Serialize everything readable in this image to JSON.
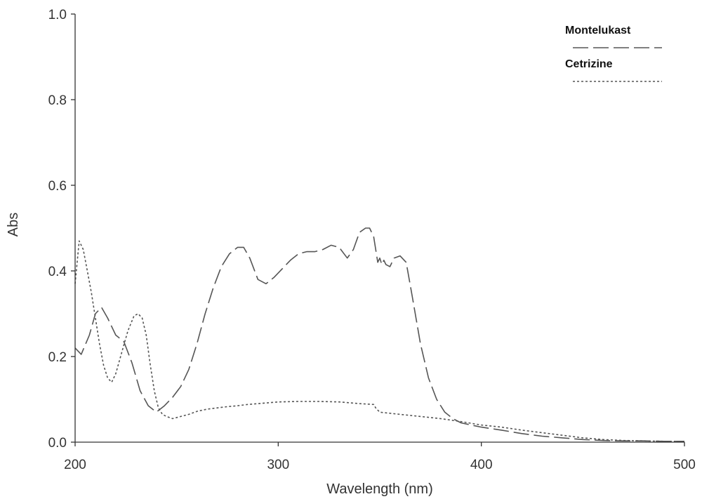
{
  "chart_data": {
    "type": "line",
    "title": "",
    "xlabel": "Wavelength (nm)",
    "ylabel": "Abs",
    "xlim": [
      200,
      500
    ],
    "ylim": [
      0.0,
      1.0
    ],
    "xticks": [
      200,
      300,
      400,
      500
    ],
    "xtick_labels": [
      "200",
      "300",
      "400",
      "500"
    ],
    "yticks": [
      0.0,
      0.2,
      0.4,
      0.6,
      0.8,
      1.0
    ],
    "ytick_labels": [
      "0.0",
      "0.2",
      "0.4",
      "0.6",
      "0.8",
      "1.0"
    ],
    "grid": false,
    "legend_position": "top-right",
    "series": [
      {
        "name": "Montelukast",
        "dash": "long-dash",
        "color": "#555555",
        "x": [
          200,
          203,
          207,
          210,
          213,
          216,
          220,
          224,
          228,
          232,
          236,
          240,
          244,
          248,
          252,
          256,
          260,
          264,
          268,
          272,
          276,
          280,
          283,
          286,
          290,
          294,
          298,
          302,
          306,
          310,
          314,
          318,
          322,
          326,
          330,
          334,
          337,
          340,
          343,
          345,
          347,
          349,
          350,
          351,
          352,
          353,
          355,
          357,
          360,
          363,
          366,
          370,
          374,
          378,
          382,
          386,
          390,
          395,
          400,
          410,
          420,
          430,
          440,
          450,
          460,
          470,
          480,
          490,
          500
        ],
        "y": [
          0.22,
          0.205,
          0.25,
          0.3,
          0.315,
          0.29,
          0.25,
          0.235,
          0.185,
          0.12,
          0.085,
          0.07,
          0.085,
          0.105,
          0.13,
          0.17,
          0.23,
          0.3,
          0.36,
          0.41,
          0.44,
          0.455,
          0.455,
          0.43,
          0.38,
          0.37,
          0.385,
          0.405,
          0.425,
          0.44,
          0.445,
          0.445,
          0.45,
          0.46,
          0.455,
          0.43,
          0.45,
          0.49,
          0.5,
          0.5,
          0.48,
          0.42,
          0.43,
          0.415,
          0.425,
          0.415,
          0.41,
          0.43,
          0.435,
          0.42,
          0.34,
          0.23,
          0.15,
          0.1,
          0.07,
          0.055,
          0.045,
          0.04,
          0.035,
          0.028,
          0.02,
          0.014,
          0.01,
          0.006,
          0.004,
          0.003,
          0.003,
          0.002,
          0.002
        ]
      },
      {
        "name": "Cetrizine",
        "dash": "dotted",
        "color": "#555555",
        "x": [
          200,
          202,
          204,
          206,
          208,
          210,
          212,
          214,
          216,
          218,
          220,
          223,
          226,
          229,
          231,
          233,
          235,
          237,
          239,
          241,
          243,
          245,
          248,
          252,
          256,
          260,
          265,
          270,
          275,
          280,
          285,
          290,
          295,
          300,
          310,
          320,
          330,
          340,
          347,
          348,
          349,
          350,
          360,
          370,
          380,
          390,
          400,
          410,
          420,
          430,
          440,
          450,
          460,
          470,
          480,
          490,
          500
        ],
        "y": [
          0.37,
          0.47,
          0.45,
          0.4,
          0.35,
          0.29,
          0.23,
          0.18,
          0.15,
          0.14,
          0.16,
          0.21,
          0.26,
          0.295,
          0.3,
          0.29,
          0.25,
          0.18,
          0.12,
          0.08,
          0.065,
          0.06,
          0.055,
          0.06,
          0.065,
          0.072,
          0.077,
          0.08,
          0.083,
          0.085,
          0.088,
          0.09,
          0.092,
          0.094,
          0.095,
          0.095,
          0.094,
          0.09,
          0.088,
          0.08,
          0.075,
          0.07,
          0.065,
          0.06,
          0.055,
          0.048,
          0.04,
          0.035,
          0.028,
          0.022,
          0.016,
          0.01,
          0.006,
          0.004,
          0.003,
          0.002,
          0.002
        ]
      }
    ]
  }
}
